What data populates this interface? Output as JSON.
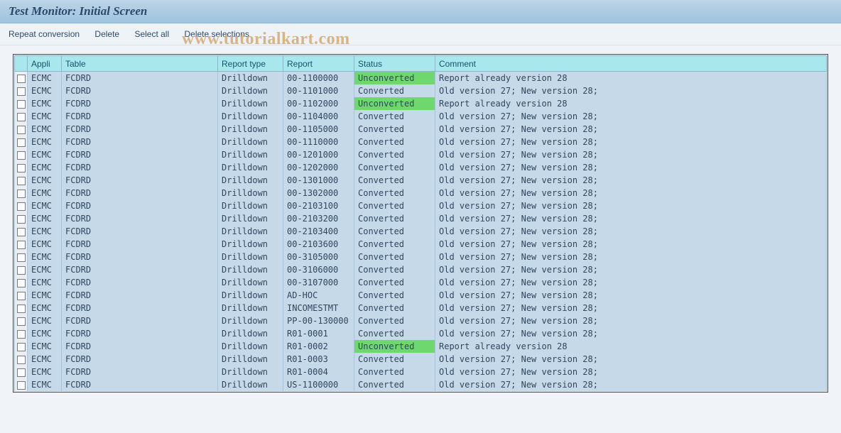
{
  "title": "Test Monitor: Initial Screen",
  "toolbar": {
    "repeat": "Repeat conversion",
    "delete": "Delete",
    "select_all": "Select all",
    "delete_sel": "Delete selections"
  },
  "watermark": "www.tutorialkart.com",
  "table": {
    "headers": {
      "appli": "Appli",
      "table": "Table",
      "report_type": "Report type",
      "report": "Report",
      "status": "Status",
      "comment": "Comment"
    },
    "status_colors": {
      "Unconverted": "#6ed86e",
      "Converted": "transparent"
    },
    "rows": [
      {
        "appli": "ECMC",
        "table": "FCDRD",
        "rtype": "Drilldown",
        "report": "00-1100000",
        "status": "Unconverted",
        "comment": "Report already version 28"
      },
      {
        "appli": "ECMC",
        "table": "FCDRD",
        "rtype": "Drilldown",
        "report": "00-1101000",
        "status": "Converted",
        "comment": "Old version 27; New version 28;"
      },
      {
        "appli": "ECMC",
        "table": "FCDRD",
        "rtype": "Drilldown",
        "report": "00-1102000",
        "status": "Unconverted",
        "comment": "Report already version 28"
      },
      {
        "appli": "ECMC",
        "table": "FCDRD",
        "rtype": "Drilldown",
        "report": "00-1104000",
        "status": "Converted",
        "comment": "Old version 27; New version 28;"
      },
      {
        "appli": "ECMC",
        "table": "FCDRD",
        "rtype": "Drilldown",
        "report": "00-1105000",
        "status": "Converted",
        "comment": "Old version 27; New version 28;"
      },
      {
        "appli": "ECMC",
        "table": "FCDRD",
        "rtype": "Drilldown",
        "report": "00-1110000",
        "status": "Converted",
        "comment": "Old version 27; New version 28;"
      },
      {
        "appli": "ECMC",
        "table": "FCDRD",
        "rtype": "Drilldown",
        "report": "00-1201000",
        "status": "Converted",
        "comment": "Old version 27; New version 28;"
      },
      {
        "appli": "ECMC",
        "table": "FCDRD",
        "rtype": "Drilldown",
        "report": "00-1202000",
        "status": "Converted",
        "comment": "Old version 27; New version 28;"
      },
      {
        "appli": "ECMC",
        "table": "FCDRD",
        "rtype": "Drilldown",
        "report": "00-1301000",
        "status": "Converted",
        "comment": "Old version 27; New version 28;"
      },
      {
        "appli": "ECMC",
        "table": "FCDRD",
        "rtype": "Drilldown",
        "report": "00-1302000",
        "status": "Converted",
        "comment": "Old version 27; New version 28;"
      },
      {
        "appli": "ECMC",
        "table": "FCDRD",
        "rtype": "Drilldown",
        "report": "00-2103100",
        "status": "Converted",
        "comment": "Old version 27; New version 28;"
      },
      {
        "appli": "ECMC",
        "table": "FCDRD",
        "rtype": "Drilldown",
        "report": "00-2103200",
        "status": "Converted",
        "comment": "Old version 27; New version 28;"
      },
      {
        "appli": "ECMC",
        "table": "FCDRD",
        "rtype": "Drilldown",
        "report": "00-2103400",
        "status": "Converted",
        "comment": "Old version 27; New version 28;"
      },
      {
        "appli": "ECMC",
        "table": "FCDRD",
        "rtype": "Drilldown",
        "report": "00-2103600",
        "status": "Converted",
        "comment": "Old version 27; New version 28;"
      },
      {
        "appli": "ECMC",
        "table": "FCDRD",
        "rtype": "Drilldown",
        "report": "00-3105000",
        "status": "Converted",
        "comment": "Old version 27; New version 28;"
      },
      {
        "appli": "ECMC",
        "table": "FCDRD",
        "rtype": "Drilldown",
        "report": "00-3106000",
        "status": "Converted",
        "comment": "Old version 27; New version 28;"
      },
      {
        "appli": "ECMC",
        "table": "FCDRD",
        "rtype": "Drilldown",
        "report": "00-3107000",
        "status": "Converted",
        "comment": "Old version 27; New version 28;"
      },
      {
        "appli": "ECMC",
        "table": "FCDRD",
        "rtype": "Drilldown",
        "report": "AD-HOC",
        "status": "Converted",
        "comment": "Old version 27; New version 28;"
      },
      {
        "appli": "ECMC",
        "table": "FCDRD",
        "rtype": "Drilldown",
        "report": "INCOMESTMT",
        "status": "Converted",
        "comment": "Old version 27; New version 28;"
      },
      {
        "appli": "ECMC",
        "table": "FCDRD",
        "rtype": "Drilldown",
        "report": "PP-00-130000",
        "status": "Converted",
        "comment": "Old version 27; New version 28;"
      },
      {
        "appli": "ECMC",
        "table": "FCDRD",
        "rtype": "Drilldown",
        "report": "R01-0001",
        "status": "Converted",
        "comment": "Old version 27; New version 28;"
      },
      {
        "appli": "ECMC",
        "table": "FCDRD",
        "rtype": "Drilldown",
        "report": "R01-0002",
        "status": "Unconverted",
        "comment": "Report already version 28"
      },
      {
        "appli": "ECMC",
        "table": "FCDRD",
        "rtype": "Drilldown",
        "report": "R01-0003",
        "status": "Converted",
        "comment": "Old version 27; New version 28;"
      },
      {
        "appli": "ECMC",
        "table": "FCDRD",
        "rtype": "Drilldown",
        "report": "R01-0004",
        "status": "Converted",
        "comment": "Old version 27; New version 28;"
      },
      {
        "appli": "ECMC",
        "table": "FCDRD",
        "rtype": "Drilldown",
        "report": "US-1100000",
        "status": "Converted",
        "comment": "Old version 27; New version 28;"
      }
    ]
  }
}
